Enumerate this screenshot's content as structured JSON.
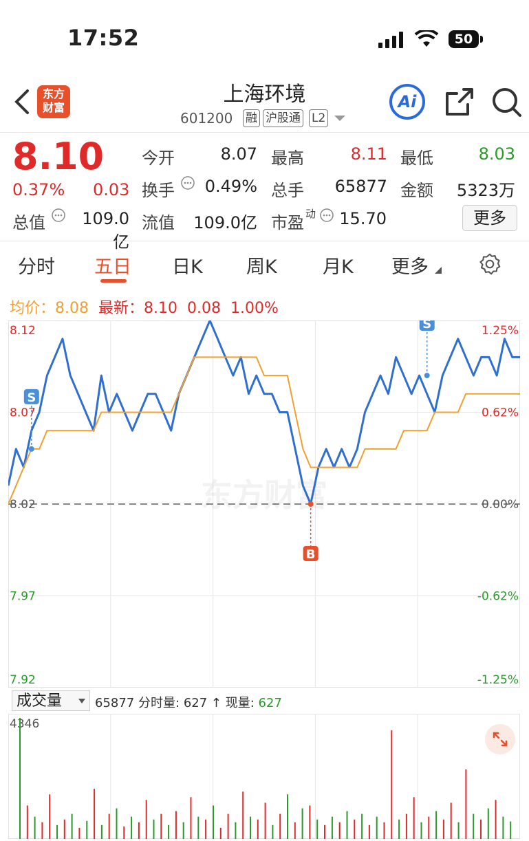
{
  "status_bar": {
    "time": "17:52",
    "battery": "50"
  },
  "header": {
    "stock_name": "上海环境",
    "stock_code": "601200",
    "tags": [
      "融",
      "沪股通",
      "L2"
    ],
    "logo_text": "东方财富",
    "ai_label": "Ai"
  },
  "quote": {
    "price": "8.10",
    "change_pct": "0.37%",
    "change": "0.03",
    "fields": [
      {
        "label": "今开",
        "value": "8.07",
        "color": "#222"
      },
      {
        "label": "最高",
        "value": "8.11",
        "color": "#e02a2a"
      },
      {
        "label": "最低",
        "value": "8.03",
        "color": "#2a9a2a"
      },
      {
        "label": "换手",
        "value": "0.49%",
        "color": "#222"
      },
      {
        "label": "总手",
        "value": "65877",
        "color": "#222"
      },
      {
        "label": "金额",
        "value": "5323万",
        "color": "#222"
      },
      {
        "label": "总值",
        "value": "109.0亿",
        "color": "#222"
      },
      {
        "label": "流值",
        "value": "109.0亿",
        "color": "#222"
      },
      {
        "label": "市盈",
        "value": "15.70",
        "color": "#222"
      }
    ],
    "pe_sup": "动",
    "more_label": "更多"
  },
  "tabs": [
    "分时",
    "五日",
    "日K",
    "周K",
    "月K",
    "更多"
  ],
  "active_tab": "五日",
  "legend": {
    "avg_label": "均价：",
    "avg_value": "8.08",
    "latest_label": "最新：",
    "latest_value": "8.10",
    "latest_change": "0.08",
    "latest_pct": "1.00%"
  },
  "watermark": "东方财富",
  "colors": {
    "up": "#e02a2a",
    "down": "#2a9a2a",
    "price_line": "#2f6fcf",
    "avg_line": "#f0a030",
    "accent": "#e8502c"
  },
  "chart_data": {
    "type": "line",
    "title": "",
    "y_left_ticks": [
      "8.12",
      "8.07",
      "8.02",
      "7.97",
      "7.92"
    ],
    "y_right_ticks": [
      "1.25%",
      "0.62%",
      "0.00%",
      "-0.62%",
      "-1.25%"
    ],
    "ylim": [
      7.92,
      8.12
    ],
    "base_price": 8.02,
    "days": 5,
    "series": [
      {
        "name": "",
        "color": "#2f6fcf",
        "values": [
          8.03,
          8.05,
          8.04,
          8.06,
          8.07,
          8.09,
          8.1,
          8.11,
          8.09,
          8.08,
          8.07,
          8.06,
          8.09,
          8.07,
          8.08,
          8.07,
          8.06,
          8.07,
          8.08,
          8.08,
          8.07,
          8.06,
          8.08,
          8.09,
          8.1,
          8.11,
          8.12,
          8.11,
          8.1,
          8.09,
          8.1,
          8.08,
          8.09,
          8.08,
          8.08,
          8.07,
          8.07,
          8.05,
          8.03,
          8.02,
          8.04,
          8.05,
          8.04,
          8.05,
          8.04,
          8.05,
          8.07,
          8.08,
          8.09,
          8.08,
          8.1,
          8.09,
          8.08,
          8.09,
          8.08,
          8.07,
          8.09,
          8.1,
          8.11,
          8.1,
          8.09,
          8.1,
          8.1,
          8.09,
          8.11,
          8.1,
          8.1
        ]
      },
      {
        "name": "",
        "color": "#f0a030",
        "values": [
          8.02,
          8.03,
          8.04,
          8.05,
          8.05,
          8.06,
          8.06,
          8.06,
          8.06,
          8.06,
          8.06,
          8.06,
          8.07,
          8.07,
          8.07,
          8.07,
          8.07,
          8.07,
          8.07,
          8.07,
          8.07,
          8.07,
          8.08,
          8.09,
          8.1,
          8.1,
          8.1,
          8.1,
          8.1,
          8.1,
          8.1,
          8.1,
          8.1,
          8.09,
          8.09,
          8.09,
          8.09,
          8.07,
          8.05,
          8.04,
          8.04,
          8.04,
          8.04,
          8.04,
          8.04,
          8.04,
          8.05,
          8.05,
          8.05,
          8.05,
          8.05,
          8.06,
          8.06,
          8.06,
          8.06,
          8.07,
          8.07,
          8.07,
          8.07,
          8.08,
          8.08,
          8.08,
          8.08,
          8.08,
          8.08,
          8.08,
          8.08
        ]
      }
    ],
    "markers": [
      {
        "label": "S",
        "index": 3,
        "value": 8.05
      },
      {
        "label": "B",
        "index": 39,
        "value": 8.02
      },
      {
        "label": "S",
        "index": 54,
        "value": 8.09
      }
    ]
  },
  "volume": {
    "selector_label": "成交量",
    "total": "65877",
    "fenshi_label": "分时量:",
    "fenshi_value": "627",
    "current_label": "现量:",
    "current_value": "627",
    "max_tick": "4346",
    "bars": [
      {
        "v": 4346,
        "up": false
      },
      {
        "v": 1200,
        "up": true
      },
      {
        "v": 800,
        "up": false
      },
      {
        "v": 600,
        "up": true
      },
      {
        "v": 1600,
        "up": true
      },
      {
        "v": 500,
        "up": false
      },
      {
        "v": 700,
        "up": true
      },
      {
        "v": 900,
        "up": false
      },
      {
        "v": 400,
        "up": true
      },
      {
        "v": 650,
        "up": false
      },
      {
        "v": 1800,
        "up": true
      },
      {
        "v": 500,
        "up": false
      },
      {
        "v": 900,
        "up": true
      },
      {
        "v": 1100,
        "up": false
      },
      {
        "v": 450,
        "up": true
      },
      {
        "v": 800,
        "up": false
      },
      {
        "v": 600,
        "up": true
      },
      {
        "v": 1400,
        "up": true
      },
      {
        "v": 700,
        "up": false
      },
      {
        "v": 900,
        "up": true
      },
      {
        "v": 500,
        "up": false
      },
      {
        "v": 1000,
        "up": true
      },
      {
        "v": 600,
        "up": false
      },
      {
        "v": 1500,
        "up": true
      },
      {
        "v": 800,
        "up": false
      },
      {
        "v": 700,
        "up": true
      },
      {
        "v": 1200,
        "up": false
      },
      {
        "v": 400,
        "up": true
      },
      {
        "v": 900,
        "up": true
      },
      {
        "v": 600,
        "up": false
      },
      {
        "v": 1700,
        "up": true
      },
      {
        "v": 800,
        "up": false
      },
      {
        "v": 700,
        "up": true
      },
      {
        "v": 1300,
        "up": true
      },
      {
        "v": 500,
        "up": false
      },
      {
        "v": 900,
        "up": true
      },
      {
        "v": 1600,
        "up": false
      },
      {
        "v": 600,
        "up": true
      },
      {
        "v": 1100,
        "up": false
      },
      {
        "v": 1200,
        "up": true
      },
      {
        "v": 700,
        "up": false
      },
      {
        "v": 500,
        "up": true
      },
      {
        "v": 800,
        "up": false
      },
      {
        "v": 600,
        "up": true
      },
      {
        "v": 1000,
        "up": false
      },
      {
        "v": 700,
        "up": true
      },
      {
        "v": 900,
        "up": false
      },
      {
        "v": 500,
        "up": true
      },
      {
        "v": 800,
        "up": false
      },
      {
        "v": 600,
        "up": true
      },
      {
        "v": 3900,
        "up": true
      },
      {
        "v": 700,
        "up": false
      },
      {
        "v": 900,
        "up": true
      },
      {
        "v": 1500,
        "up": true
      },
      {
        "v": 600,
        "up": false
      },
      {
        "v": 800,
        "up": true
      },
      {
        "v": 1000,
        "up": false
      },
      {
        "v": 700,
        "up": true
      },
      {
        "v": 1300,
        "up": true
      },
      {
        "v": 600,
        "up": false
      },
      {
        "v": 2500,
        "up": true
      },
      {
        "v": 900,
        "up": false
      },
      {
        "v": 700,
        "up": true
      },
      {
        "v": 1100,
        "up": false
      },
      {
        "v": 1400,
        "up": true
      },
      {
        "v": 800,
        "up": false
      },
      {
        "v": 627,
        "up": false
      }
    ]
  }
}
